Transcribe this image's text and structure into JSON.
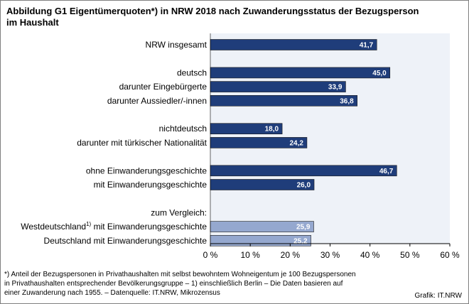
{
  "title": {
    "line1": "Abbildung G1  Eigentümerquoten*) in NRW 2018 nach Zuwanderungsstatus der Bezugsperson",
    "line2": "im Haushalt"
  },
  "chart_data": {
    "type": "bar",
    "orientation": "horizontal",
    "xlim": [
      0,
      60
    ],
    "xticks": [
      0,
      10,
      20,
      30,
      40,
      50,
      60
    ],
    "tick_suffix": " %",
    "grid": false,
    "colors": {
      "main": "#1f3d7a",
      "comparison": "#95a8cf",
      "plot_bg": "#eef2f8",
      "value_main": "#ffffff",
      "value_comparison": "#ffffff"
    },
    "rows": [
      {
        "label": "NRW insgesamt",
        "value": 41.7,
        "value_label": "41,7",
        "style": "main"
      },
      {
        "label": "",
        "value": null
      },
      {
        "label": "deutsch",
        "value": 45.0,
        "value_label": "45,0",
        "style": "main"
      },
      {
        "label": "darunter Eingebürgerte",
        "value": 33.9,
        "value_label": "33,9",
        "style": "main"
      },
      {
        "label": "darunter Aussiedler/-innen",
        "value": 36.8,
        "value_label": "36,8",
        "style": "main"
      },
      {
        "label": "",
        "value": null
      },
      {
        "label": "nichtdeutsch",
        "value": 18.0,
        "value_label": "18,0",
        "style": "main"
      },
      {
        "label": "darunter mit türkischer Nationalität",
        "value": 24.2,
        "value_label": "24,2",
        "style": "main"
      },
      {
        "label": "",
        "value": null
      },
      {
        "label": "ohne Einwanderungsgeschichte",
        "value": 46.7,
        "value_label": "46,7",
        "style": "main"
      },
      {
        "label": "mit Einwanderungsgeschichte",
        "value": 26.0,
        "value_label": "26,0",
        "style": "main"
      },
      {
        "label": "",
        "value": null
      },
      {
        "label": "zum Vergleich:",
        "value": null
      },
      {
        "label": "Westdeutschland",
        "label_sup": "1)",
        "label_rest": " mit Einwanderungsgeschichte",
        "value": 25.9,
        "value_label": "25,9",
        "style": "comparison"
      },
      {
        "label": "Deutschland mit Einwanderungsgeschichte",
        "value": 25.2,
        "value_label": "25,2",
        "style": "comparison"
      }
    ]
  },
  "footnote": {
    "line1": "*) Anteil der Bezugspersonen in Privathaushalten  mit selbst bewohntem Wohneigentum  je 100 Bezugspersonen",
    "line2": "in Privathaushalten  entsprechender Bevölkerungsgruppe  – 1) einschließlich Berlin  – Die Daten basieren auf",
    "line3": "einer Zuwanderung nach 1955. – Datenquelle:  IT.NRW,  Mikrozensus"
  },
  "credit": "Grafik: IT.NRW"
}
